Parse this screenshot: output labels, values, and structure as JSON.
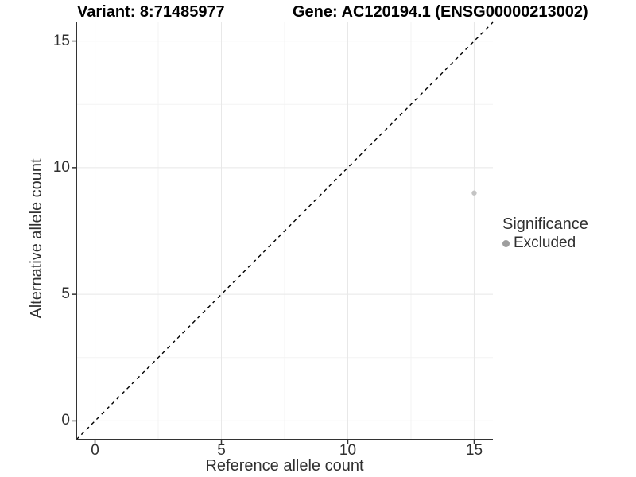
{
  "chart_data": {
    "type": "scatter",
    "title_left": "Variant: 8:71485977",
    "title_right": "Gene: AC120194.1 (ENSG00000213002)",
    "xlabel": "Reference allele count",
    "ylabel": "Alternative allele count",
    "xlim": [
      -0.74,
      15.74
    ],
    "ylim": [
      -0.74,
      15.74
    ],
    "x_ticks": [
      0,
      5,
      10,
      15
    ],
    "y_ticks": [
      0,
      5,
      10,
      15
    ],
    "x_minor_ticks": [
      2.5,
      7.5,
      12.5
    ],
    "y_minor_ticks": [
      2.5,
      7.5,
      12.5
    ],
    "grid": {
      "enabled": true,
      "major_color": "#e8e8e8",
      "minor_color": "#f3f3f3"
    },
    "axis_color": "#333333",
    "reference_line": {
      "slope": 1,
      "intercept": 0,
      "style": "dashed",
      "color": "#000000"
    },
    "series": [
      {
        "name": "Excluded",
        "color": "#c4c4c4",
        "points": [
          {
            "x": 15,
            "y": 9
          }
        ]
      }
    ],
    "legend": {
      "position": "right",
      "title": "Significance",
      "entries": [
        {
          "label": "Excluded",
          "color": "#9e9e9e"
        }
      ]
    }
  }
}
